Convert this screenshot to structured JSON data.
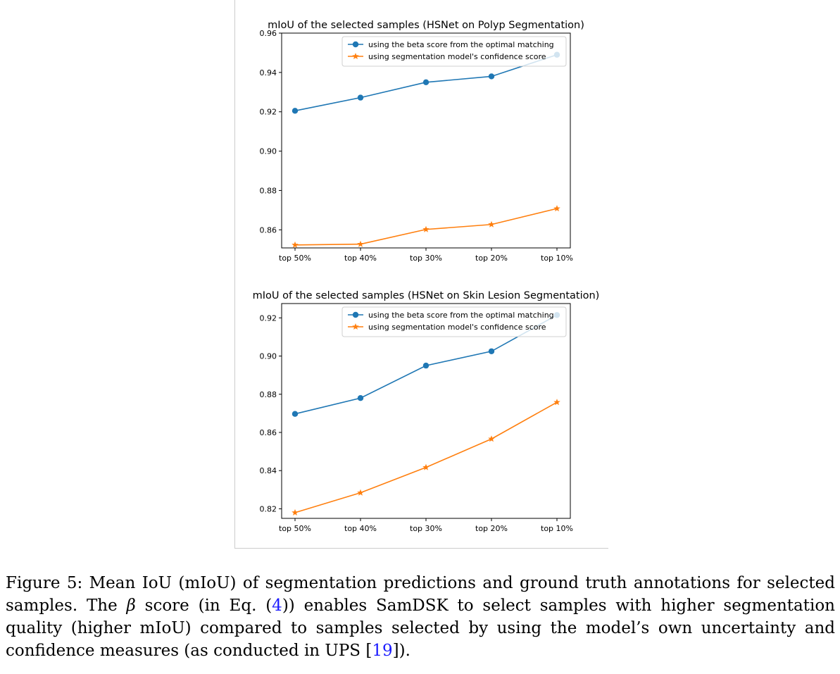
{
  "chart_data": [
    {
      "type": "line",
      "title": "mIoU of the selected samples (HSNet on Polyp Segmentation)",
      "categories": [
        "top 50%",
        "top 40%",
        "top 30%",
        "top 20%",
        "top 10%"
      ],
      "series": [
        {
          "name": "using the beta score from the optimal matching",
          "marker": "circle",
          "color": "#1f77b4",
          "values": [
            0.9205,
            0.9272,
            0.935,
            0.938,
            0.949
          ]
        },
        {
          "name": "using segmentation model's confidence score",
          "marker": "star",
          "color": "#ff7f0e",
          "values": [
            0.8523,
            0.8527,
            0.8602,
            0.8627,
            0.8708
          ]
        }
      ],
      "ylim": [
        0.8508,
        0.96
      ],
      "yticks": [
        0.86,
        0.88,
        0.9,
        0.92,
        0.94,
        0.96
      ],
      "ytick_labels": [
        "0.86",
        "0.88",
        "0.90",
        "0.92",
        "0.94",
        "0.96"
      ],
      "legend": "top-right",
      "grid": false
    },
    {
      "type": "line",
      "title": "mIoU of the selected samples (HSNet on Skin Lesion Segmentation)",
      "categories": [
        "top 50%",
        "top 40%",
        "top 30%",
        "top 20%",
        "top 10%"
      ],
      "series": [
        {
          "name": "using the beta score from the optimal matching",
          "marker": "circle",
          "color": "#1f77b4",
          "values": [
            0.8697,
            0.878,
            0.895,
            0.9025,
            0.9215
          ]
        },
        {
          "name": "using segmentation model's confidence score",
          "marker": "star",
          "color": "#ff7f0e",
          "values": [
            0.818,
            0.8284,
            0.8417,
            0.8566,
            0.8758
          ]
        }
      ],
      "ylim": [
        0.815,
        0.9275
      ],
      "yticks": [
        0.82,
        0.84,
        0.86,
        0.88,
        0.9,
        0.92
      ],
      "ytick_labels": [
        "0.82",
        "0.84",
        "0.86",
        "0.88",
        "0.90",
        "0.92"
      ],
      "legend": "top-right",
      "grid": false
    }
  ],
  "caption": {
    "p1": "Figure 5: Mean IoU (mIoU) of segmentation predictions and ground truth annotations for selected samples. The ",
    "beta": "β",
    "p2": " score (in Eq. (",
    "eq_ref": "4",
    "p3": ")) enables SamDSK to select samples with higher segmentation quality (higher mIoU) compared to samples selected by using the model’s own uncertainty and confidence measures (as conducted in UPS [",
    "cite_ref": "19",
    "p4": "])."
  }
}
